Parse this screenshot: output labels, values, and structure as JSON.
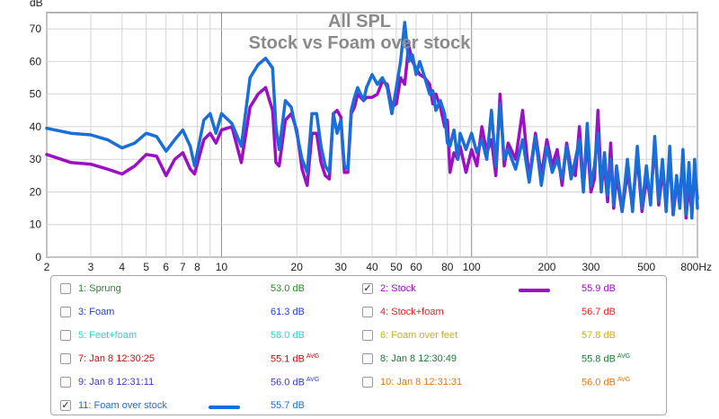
{
  "chart_data": {
    "type": "line",
    "title": "All SPL",
    "subtitle": "Stock vs Foam over stock",
    "ylabel": "dB",
    "xunit": "Hz",
    "xscale": "log",
    "xlim": [
      2,
      800
    ],
    "ylim": [
      0,
      75
    ],
    "grid": true,
    "y_ticks": [
      "0",
      "10",
      "20",
      "30",
      "40",
      "50",
      "60",
      "70"
    ],
    "x_ticks": [
      {
        "value": 2,
        "label": "2"
      },
      {
        "value": 3,
        "label": "3"
      },
      {
        "value": 4,
        "label": "4"
      },
      {
        "value": 5,
        "label": "5"
      },
      {
        "value": 6,
        "label": "6"
      },
      {
        "value": 7,
        "label": "7"
      },
      {
        "value": 8,
        "label": "8"
      },
      {
        "value": 10,
        "label": "10"
      },
      {
        "value": 20,
        "label": "20"
      },
      {
        "value": 30,
        "label": "30"
      },
      {
        "value": 40,
        "label": "40"
      },
      {
        "value": 50,
        "label": "50"
      },
      {
        "value": 60,
        "label": "60"
      },
      {
        "value": 80,
        "label": "80"
      },
      {
        "value": 100,
        "label": "100"
      },
      {
        "value": 200,
        "label": "200"
      },
      {
        "value": 300,
        "label": "300"
      },
      {
        "value": 500,
        "label": "500"
      },
      {
        "value": 800,
        "label": "800Hz"
      }
    ],
    "series": [
      {
        "name": "2: Stock",
        "color": "#9b10c4",
        "points": [
          [
            2,
            31.5
          ],
          [
            2.5,
            29
          ],
          [
            3,
            28.5
          ],
          [
            3.5,
            27
          ],
          [
            4,
            25.5
          ],
          [
            4.5,
            28
          ],
          [
            5,
            31.5
          ],
          [
            5.5,
            31
          ],
          [
            6,
            25
          ],
          [
            6.5,
            30
          ],
          [
            7,
            32
          ],
          [
            7.5,
            27
          ],
          [
            7.8,
            25.5
          ],
          [
            8.5,
            36
          ],
          [
            9,
            38
          ],
          [
            9.5,
            35
          ],
          [
            10,
            39
          ],
          [
            11,
            40
          ],
          [
            12,
            29
          ],
          [
            13,
            46
          ],
          [
            14,
            50
          ],
          [
            15,
            52
          ],
          [
            16,
            45
          ],
          [
            16.5,
            29
          ],
          [
            17,
            28
          ],
          [
            18,
            42
          ],
          [
            19,
            44
          ],
          [
            20,
            39
          ],
          [
            21,
            27
          ],
          [
            22,
            22
          ],
          [
            23,
            38
          ],
          [
            24,
            38
          ],
          [
            25,
            29
          ],
          [
            26,
            25
          ],
          [
            27,
            24
          ],
          [
            28,
            44
          ],
          [
            29,
            45
          ],
          [
            30,
            43
          ],
          [
            31,
            26
          ],
          [
            32,
            26
          ],
          [
            33,
            44
          ],
          [
            34,
            46
          ],
          [
            35,
            50
          ],
          [
            37,
            48
          ],
          [
            38,
            49
          ],
          [
            40,
            49
          ],
          [
            42,
            50
          ],
          [
            44,
            54
          ],
          [
            46,
            53
          ],
          [
            48,
            46
          ],
          [
            50,
            47
          ],
          [
            52,
            55
          ],
          [
            54,
            53
          ],
          [
            56,
            65
          ],
          [
            58,
            60
          ],
          [
            60,
            58
          ],
          [
            62,
            56
          ],
          [
            65,
            55
          ],
          [
            68,
            53
          ],
          [
            70,
            47
          ],
          [
            72,
            50
          ],
          [
            75,
            46
          ],
          [
            78,
            40
          ],
          [
            80,
            42
          ],
          [
            82,
            26
          ],
          [
            85,
            32
          ],
          [
            88,
            30
          ],
          [
            90,
            34
          ],
          [
            95,
            26
          ],
          [
            100,
            33
          ],
          [
            105,
            28
          ],
          [
            110,
            40
          ],
          [
            115,
            32
          ],
          [
            120,
            36
          ],
          [
            125,
            25
          ],
          [
            130,
            50
          ],
          [
            135,
            28
          ],
          [
            140,
            35
          ],
          [
            150,
            30
          ],
          [
            160,
            45
          ],
          [
            170,
            24
          ],
          [
            180,
            38
          ],
          [
            190,
            25
          ],
          [
            200,
            36
          ],
          [
            210,
            28
          ],
          [
            220,
            33
          ],
          [
            230,
            22
          ],
          [
            240,
            35
          ],
          [
            250,
            27
          ],
          [
            260,
            25
          ],
          [
            270,
            40
          ],
          [
            280,
            21
          ],
          [
            290,
            36
          ],
          [
            300,
            20
          ],
          [
            310,
            24
          ],
          [
            320,
            45
          ],
          [
            330,
            22
          ],
          [
            340,
            28
          ],
          [
            350,
            17
          ],
          [
            360,
            35
          ],
          [
            370,
            15
          ],
          [
            380,
            25
          ],
          [
            400,
            14
          ],
          [
            420,
            26
          ],
          [
            440,
            16
          ],
          [
            460,
            31
          ],
          [
            480,
            14
          ],
          [
            500,
            24
          ],
          [
            520,
            18
          ],
          [
            540,
            35
          ],
          [
            560,
            16
          ],
          [
            580,
            26
          ],
          [
            600,
            18
          ],
          [
            620,
            30
          ],
          [
            640,
            13
          ],
          [
            660,
            22
          ],
          [
            680,
            19
          ],
          [
            700,
            30
          ],
          [
            720,
            12
          ],
          [
            740,
            22
          ],
          [
            760,
            14
          ],
          [
            780,
            26
          ],
          [
            800,
            18
          ]
        ]
      },
      {
        "name": "11: Foam over stock",
        "color": "#1a6ed8",
        "points": [
          [
            2,
            39.5
          ],
          [
            2.5,
            38
          ],
          [
            3,
            37.5
          ],
          [
            3.5,
            36
          ],
          [
            4,
            33.5
          ],
          [
            4.5,
            35
          ],
          [
            5,
            38
          ],
          [
            5.5,
            37
          ],
          [
            6,
            32.5
          ],
          [
            6.5,
            36
          ],
          [
            7,
            39
          ],
          [
            7.5,
            34
          ],
          [
            7.8,
            28
          ],
          [
            8.5,
            42
          ],
          [
            9,
            44
          ],
          [
            9.5,
            38
          ],
          [
            10,
            44
          ],
          [
            11,
            41
          ],
          [
            12,
            34
          ],
          [
            13,
            55
          ],
          [
            14,
            59
          ],
          [
            15,
            61
          ],
          [
            16,
            58
          ],
          [
            16.5,
            40
          ],
          [
            17,
            33
          ],
          [
            18,
            48
          ],
          [
            19,
            46
          ],
          [
            20,
            38
          ],
          [
            21,
            30
          ],
          [
            22,
            26
          ],
          [
            23,
            44
          ],
          [
            24,
            44
          ],
          [
            25,
            34
          ],
          [
            26,
            28
          ],
          [
            27,
            26
          ],
          [
            28,
            44
          ],
          [
            29,
            38
          ],
          [
            30,
            42
          ],
          [
            31,
            28
          ],
          [
            32,
            27
          ],
          [
            33,
            45
          ],
          [
            34,
            49
          ],
          [
            35,
            52
          ],
          [
            37,
            48
          ],
          [
            38,
            52
          ],
          [
            40,
            56
          ],
          [
            42,
            53
          ],
          [
            44,
            55
          ],
          [
            46,
            52
          ],
          [
            48,
            44
          ],
          [
            50,
            52
          ],
          [
            52,
            60
          ],
          [
            54,
            72
          ],
          [
            56,
            60
          ],
          [
            58,
            62
          ],
          [
            60,
            56
          ],
          [
            62,
            60
          ],
          [
            65,
            55
          ],
          [
            68,
            50
          ],
          [
            70,
            51
          ],
          [
            72,
            45
          ],
          [
            75,
            48
          ],
          [
            78,
            44
          ],
          [
            80,
            35
          ],
          [
            82,
            34
          ],
          [
            85,
            39
          ],
          [
            88,
            30
          ],
          [
            90,
            38
          ],
          [
            95,
            33
          ],
          [
            100,
            38
          ],
          [
            105,
            32
          ],
          [
            110,
            36
          ],
          [
            115,
            30
          ],
          [
            120,
            45
          ],
          [
            125,
            28
          ],
          [
            130,
            47
          ],
          [
            135,
            30
          ],
          [
            140,
            33
          ],
          [
            150,
            27
          ],
          [
            160,
            36
          ],
          [
            170,
            23
          ],
          [
            180,
            37
          ],
          [
            190,
            22
          ],
          [
            200,
            34
          ],
          [
            210,
            26
          ],
          [
            220,
            30
          ],
          [
            230,
            24
          ],
          [
            240,
            34
          ],
          [
            250,
            24
          ],
          [
            260,
            30
          ],
          [
            270,
            36
          ],
          [
            280,
            20
          ],
          [
            290,
            41
          ],
          [
            300,
            22
          ],
          [
            310,
            28
          ],
          [
            320,
            38
          ],
          [
            330,
            20
          ],
          [
            340,
            32
          ],
          [
            350,
            19
          ],
          [
            360,
            30
          ],
          [
            370,
            16
          ],
          [
            380,
            28
          ],
          [
            400,
            14
          ],
          [
            420,
            30
          ],
          [
            440,
            14
          ],
          [
            460,
            34
          ],
          [
            480,
            15
          ],
          [
            500,
            28
          ],
          [
            520,
            16
          ],
          [
            540,
            37
          ],
          [
            560,
            17
          ],
          [
            580,
            30
          ],
          [
            600,
            14
          ],
          [
            620,
            34
          ],
          [
            640,
            13
          ],
          [
            660,
            25
          ],
          [
            680,
            15
          ],
          [
            700,
            33
          ],
          [
            720,
            13
          ],
          [
            740,
            29
          ],
          [
            760,
            12
          ],
          [
            780,
            30
          ],
          [
            800,
            15
          ]
        ]
      }
    ]
  },
  "legend": [
    {
      "label": "1: Sprung",
      "value": "53.0 dB",
      "checked": false,
      "avg": "",
      "color": "#2a8a2a",
      "value_color": "#2a8a2a"
    },
    {
      "label": "2: Stock",
      "value": "55.9 dB",
      "checked": true,
      "avg": "",
      "color": "#9b10c4",
      "value_color": "#9b10c4"
    },
    {
      "label": "3: Foam",
      "value": "61.3 dB",
      "checked": false,
      "avg": "",
      "color": "#1f3fd4",
      "value_color": "#1f3fd4"
    },
    {
      "label": "4: Stock+foam",
      "value": "56.7 dB",
      "checked": false,
      "avg": "",
      "color": "#e02424",
      "value_color": "#e02424"
    },
    {
      "label": "5: Feet+foam",
      "value": "58.0 dB",
      "checked": false,
      "avg": "",
      "color": "#2ad4d4",
      "value_color": "#2ad4d4"
    },
    {
      "label": "6: Foam over feet",
      "value": "57.8 dB",
      "checked": false,
      "avg": "",
      "color": "#c9b212",
      "value_color": "#c9b212"
    },
    {
      "label": "7: Jan 8 12:30:25",
      "value": "55.1 dB",
      "checked": false,
      "avg": "AVG",
      "color": "#c01010",
      "value_color": "#c01010"
    },
    {
      "label": "8: Jan 8 12:30:49",
      "value": "55.8 dB",
      "checked": false,
      "avg": "AVG",
      "color": "#1a7a3a",
      "value_color": "#1a7a3a"
    },
    {
      "label": "9: Jan 8 12:31:11",
      "value": "56.0 dB",
      "checked": false,
      "avg": "AVG",
      "color": "#3a3ad0",
      "value_color": "#3a3ad0"
    },
    {
      "label": "10: Jan 8 12:31:31",
      "value": "56.0 dB",
      "checked": false,
      "avg": "AVG",
      "color": "#e07a10",
      "value_color": "#e07a10"
    },
    {
      "label": "11: Foam over stock",
      "value": "55.7 dB",
      "checked": true,
      "avg": "",
      "color": "#1a6ed8",
      "value_color": "#1a6ed8"
    }
  ]
}
